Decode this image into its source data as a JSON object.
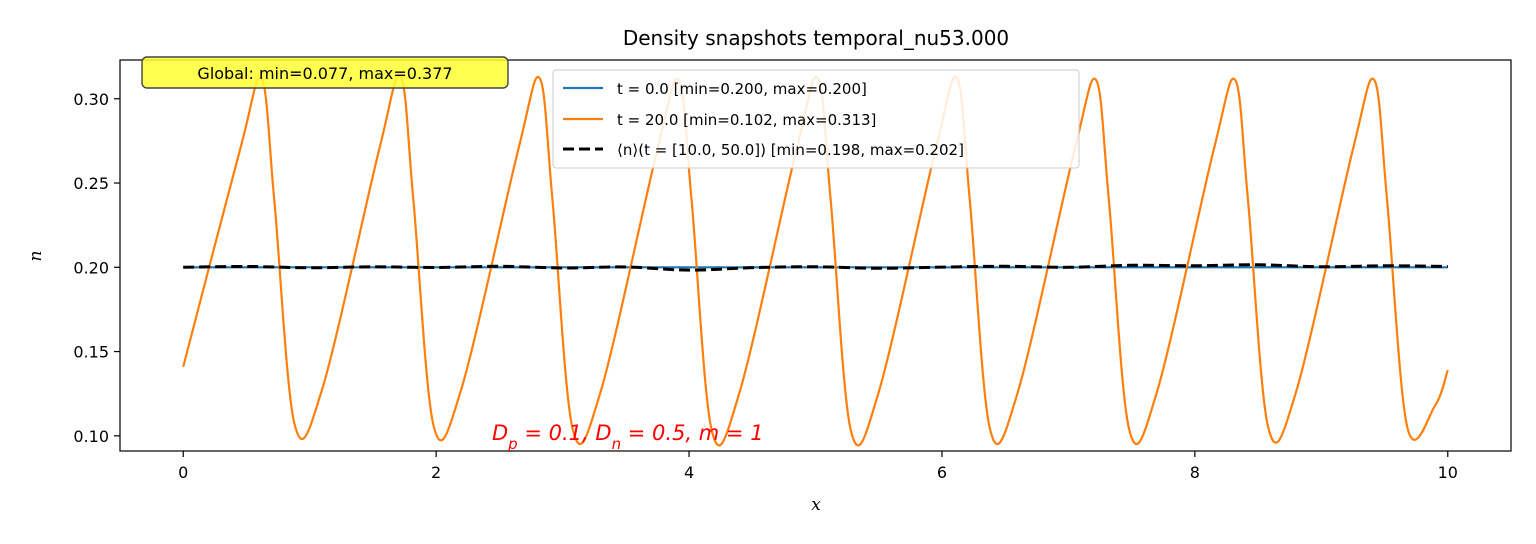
{
  "chart_data": {
    "type": "line",
    "title": "Density snapshots temporal_nu53.000",
    "xlabel": "x",
    "ylabel": "n",
    "xlim": [
      -0.5,
      10.5
    ],
    "ylim": [
      0.091,
      0.323
    ],
    "xticks": [
      0,
      2,
      4,
      6,
      8,
      10
    ],
    "xtick_labels": [
      "0",
      "2",
      "4",
      "6",
      "8",
      "10"
    ],
    "yticks": [
      0.1,
      0.15,
      0.2,
      0.25,
      0.3
    ],
    "ytick_labels": [
      "0.10",
      "0.15",
      "0.20",
      "0.25",
      "0.30"
    ],
    "grid": false,
    "legend_position": "upper-center",
    "global_annotation": "Global: min=0.077, max=0.377",
    "param_annotation": "D_p = 0.1, D_n = 0.5, m = 1",
    "series": [
      {
        "name": "t = 0.0 [min=0.200, max=0.200]",
        "legend_label": "t = 0.0 [min=0.200, max=0.200]",
        "color": "#1f77b4",
        "style": "solid",
        "x": [
          0,
          10
        ],
        "y": [
          0.2,
          0.2
        ]
      },
      {
        "name": "t = 20.0 [min=0.102, max=0.313]",
        "legend_label": "t = 20.0 [min=0.102, max=0.313]",
        "color": "#ff7f0e",
        "style": "solid",
        "x": [
          0.0,
          0.45,
          0.62,
          0.72,
          0.88,
          1.1,
          1.55,
          1.72,
          1.82,
          1.98,
          2.2,
          2.65,
          2.82,
          2.92,
          3.08,
          3.3,
          3.75,
          3.92,
          4.02,
          4.18,
          4.4,
          4.85,
          5.02,
          5.12,
          5.28,
          5.5,
          5.95,
          6.12,
          6.22,
          6.38,
          6.6,
          7.05,
          7.22,
          7.32,
          7.48,
          7.7,
          8.15,
          8.32,
          8.42,
          8.58,
          8.8,
          9.25,
          9.42,
          9.52,
          9.68,
          9.9,
          10.0
        ],
        "y": [
          0.141,
          0.27,
          0.312,
          0.24,
          0.107,
          0.128,
          0.27,
          0.313,
          0.24,
          0.106,
          0.128,
          0.27,
          0.312,
          0.24,
          0.104,
          0.126,
          0.27,
          0.311,
          0.24,
          0.103,
          0.126,
          0.27,
          0.312,
          0.24,
          0.103,
          0.126,
          0.27,
          0.312,
          0.24,
          0.104,
          0.126,
          0.27,
          0.311,
          0.24,
          0.104,
          0.126,
          0.27,
          0.311,
          0.24,
          0.105,
          0.126,
          0.27,
          0.311,
          0.24,
          0.105,
          0.118,
          0.139
        ]
      },
      {
        "name": "⟨n⟩(t = [10.0, 50.0]) [min=0.198, max=0.202]",
        "legend_label": "⟨n⟩(t = [10.0, 50.0]) [min=0.198, max=0.202]",
        "color": "#000000",
        "style": "dashed",
        "x": [
          0.0,
          0.5,
          1.0,
          1.5,
          2.0,
          2.5,
          3.0,
          3.5,
          4.0,
          4.5,
          5.0,
          5.5,
          6.0,
          6.5,
          7.0,
          7.5,
          8.0,
          8.5,
          9.0,
          9.5,
          10.0
        ],
        "y": [
          0.2,
          0.2005,
          0.1997,
          0.2003,
          0.1999,
          0.2006,
          0.1996,
          0.2002,
          0.1983,
          0.1998,
          0.2003,
          0.1994,
          0.2001,
          0.2006,
          0.2,
          0.2012,
          0.2009,
          0.2015,
          0.2003,
          0.2009,
          0.2005
        ]
      }
    ]
  }
}
